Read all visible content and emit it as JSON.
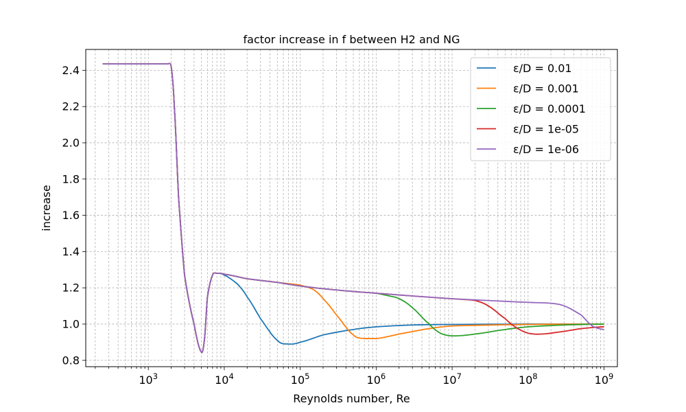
{
  "chart_data": {
    "type": "line",
    "title": "factor increase in f between H2 and NG",
    "xlabel": "Reynolds number, Re",
    "ylabel": "increase",
    "xscale": "log",
    "xlim": [
      150,
      1500000000
    ],
    "ylim": [
      0.765,
      2.515
    ],
    "x_ticks": [
      {
        "value": 1000,
        "base": "10",
        "exp": "3"
      },
      {
        "value": 10000,
        "base": "10",
        "exp": "4"
      },
      {
        "value": 100000,
        "base": "10",
        "exp": "5"
      },
      {
        "value": 1000000,
        "base": "10",
        "exp": "6"
      },
      {
        "value": 10000000,
        "base": "10",
        "exp": "7"
      },
      {
        "value": 100000000,
        "base": "10",
        "exp": "8"
      },
      {
        "value": 1000000000,
        "base": "10",
        "exp": "9"
      }
    ],
    "y_ticks": [
      "0.8",
      "1.0",
      "1.2",
      "1.4",
      "1.6",
      "1.8",
      "2.0",
      "2.2",
      "2.4"
    ],
    "grid": true,
    "legend_position": "top-right",
    "series": [
      {
        "name": "ε/D = 0.01",
        "color": "#1f77b4",
        "points": [
          [
            250,
            2.435
          ],
          [
            1000,
            2.435
          ],
          [
            1800,
            2.435
          ],
          [
            2000,
            2.42
          ],
          [
            2200,
            2.2
          ],
          [
            2500,
            1.7
          ],
          [
            3000,
            1.27
          ],
          [
            4000,
            1.0
          ],
          [
            5000,
            0.845
          ],
          [
            5500,
            0.92
          ],
          [
            6000,
            1.15
          ],
          [
            7000,
            1.27
          ],
          [
            8000,
            1.28
          ],
          [
            10000,
            1.27
          ],
          [
            15000,
            1.22
          ],
          [
            20000,
            1.15
          ],
          [
            30000,
            1.03
          ],
          [
            50000,
            0.91
          ],
          [
            70000,
            0.89
          ],
          [
            100000,
            0.9
          ],
          [
            200000,
            0.94
          ],
          [
            500000,
            0.97
          ],
          [
            1000000,
            0.985
          ],
          [
            3000000,
            0.995
          ],
          [
            10000000,
            0.998
          ],
          [
            100000000,
            1.0
          ],
          [
            1000000000,
            1.0
          ]
        ]
      },
      {
        "name": "ε/D = 0.001",
        "color": "#ff7f0e",
        "points": [
          [
            250,
            2.435
          ],
          [
            1000,
            2.435
          ],
          [
            1800,
            2.435
          ],
          [
            2000,
            2.42
          ],
          [
            2200,
            2.2
          ],
          [
            2500,
            1.7
          ],
          [
            3000,
            1.27
          ],
          [
            4000,
            1.0
          ],
          [
            5000,
            0.845
          ],
          [
            5500,
            0.92
          ],
          [
            6000,
            1.15
          ],
          [
            7000,
            1.27
          ],
          [
            8000,
            1.28
          ],
          [
            10000,
            1.275
          ],
          [
            20000,
            1.25
          ],
          [
            50000,
            1.23
          ],
          [
            100000,
            1.215
          ],
          [
            150000,
            1.19
          ],
          [
            200000,
            1.14
          ],
          [
            300000,
            1.05
          ],
          [
            500000,
            0.94
          ],
          [
            700000,
            0.92
          ],
          [
            1000000,
            0.92
          ],
          [
            2000000,
            0.945
          ],
          [
            5000000,
            0.975
          ],
          [
            10000000,
            0.99
          ],
          [
            100000000,
            0.998
          ],
          [
            1000000000,
            1.0
          ]
        ]
      },
      {
        "name": "ε/D = 0.0001",
        "color": "#2ca02c",
        "points": [
          [
            250,
            2.435
          ],
          [
            1000,
            2.435
          ],
          [
            1800,
            2.435
          ],
          [
            2000,
            2.42
          ],
          [
            2200,
            2.2
          ],
          [
            2500,
            1.7
          ],
          [
            3000,
            1.27
          ],
          [
            4000,
            1.0
          ],
          [
            5000,
            0.845
          ],
          [
            5500,
            0.92
          ],
          [
            6000,
            1.15
          ],
          [
            7000,
            1.27
          ],
          [
            8000,
            1.28
          ],
          [
            10000,
            1.275
          ],
          [
            20000,
            1.25
          ],
          [
            50000,
            1.23
          ],
          [
            100000,
            1.21
          ],
          [
            200000,
            1.195
          ],
          [
            500000,
            1.18
          ],
          [
            1000000,
            1.17
          ],
          [
            1500000,
            1.155
          ],
          [
            2000000,
            1.14
          ],
          [
            3000000,
            1.09
          ],
          [
            5000000,
            1.0
          ],
          [
            7000000,
            0.95
          ],
          [
            10000000,
            0.935
          ],
          [
            20000000,
            0.945
          ],
          [
            50000000,
            0.97
          ],
          [
            100000000,
            0.985
          ],
          [
            300000000,
            0.995
          ],
          [
            1000000000,
            1.0
          ]
        ]
      },
      {
        "name": "ε/D = 1e-05",
        "color": "#d62728",
        "points": [
          [
            250,
            2.435
          ],
          [
            1000,
            2.435
          ],
          [
            1800,
            2.435
          ],
          [
            2000,
            2.42
          ],
          [
            2200,
            2.2
          ],
          [
            2500,
            1.7
          ],
          [
            3000,
            1.27
          ],
          [
            4000,
            1.0
          ],
          [
            5000,
            0.845
          ],
          [
            5500,
            0.92
          ],
          [
            6000,
            1.15
          ],
          [
            7000,
            1.27
          ],
          [
            8000,
            1.28
          ],
          [
            10000,
            1.275
          ],
          [
            20000,
            1.25
          ],
          [
            50000,
            1.23
          ],
          [
            100000,
            1.21
          ],
          [
            200000,
            1.195
          ],
          [
            500000,
            1.18
          ],
          [
            1000000,
            1.17
          ],
          [
            3000000,
            1.155
          ],
          [
            10000000,
            1.14
          ],
          [
            20000000,
            1.13
          ],
          [
            30000000,
            1.1
          ],
          [
            50000000,
            1.03
          ],
          [
            70000000,
            0.98
          ],
          [
            100000000,
            0.95
          ],
          [
            150000000,
            0.945
          ],
          [
            300000000,
            0.96
          ],
          [
            500000000,
            0.975
          ],
          [
            1000000000,
            0.985
          ]
        ]
      },
      {
        "name": "ε/D = 1e-06",
        "color": "#9467bd",
        "points": [
          [
            250,
            2.435
          ],
          [
            1000,
            2.435
          ],
          [
            1800,
            2.435
          ],
          [
            2000,
            2.42
          ],
          [
            2200,
            2.2
          ],
          [
            2500,
            1.7
          ],
          [
            3000,
            1.27
          ],
          [
            4000,
            1.0
          ],
          [
            5000,
            0.845
          ],
          [
            5500,
            0.92
          ],
          [
            6000,
            1.15
          ],
          [
            7000,
            1.27
          ],
          [
            8000,
            1.28
          ],
          [
            10000,
            1.275
          ],
          [
            20000,
            1.25
          ],
          [
            50000,
            1.23
          ],
          [
            100000,
            1.21
          ],
          [
            200000,
            1.195
          ],
          [
            500000,
            1.18
          ],
          [
            1000000,
            1.17
          ],
          [
            3000000,
            1.155
          ],
          [
            10000000,
            1.14
          ],
          [
            30000000,
            1.13
          ],
          [
            100000000,
            1.12
          ],
          [
            200000000,
            1.115
          ],
          [
            300000000,
            1.1
          ],
          [
            500000000,
            1.05
          ],
          [
            700000000,
            0.99
          ],
          [
            1000000000,
            0.97
          ]
        ]
      }
    ]
  }
}
